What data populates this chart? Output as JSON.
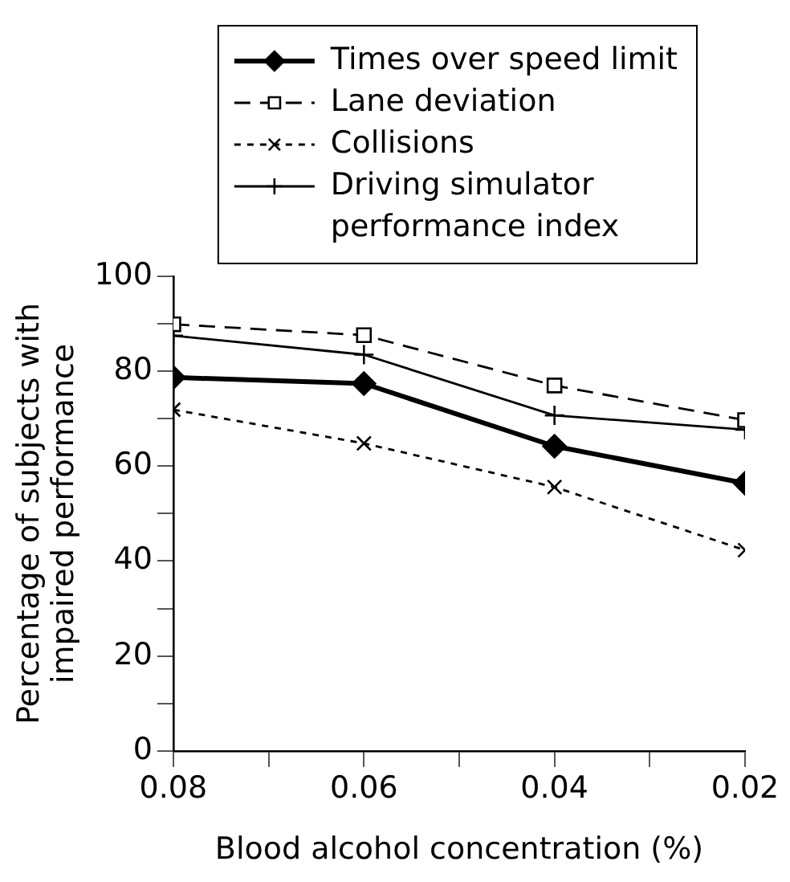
{
  "chart_data": {
    "type": "line",
    "xlabel": "Blood alcohol concentration (%)",
    "ylabel": "Percentage of subjects with impaired performance",
    "x": [
      0.08,
      0.06,
      0.04,
      0.02
    ],
    "xlim": [
      0.08,
      0.02
    ],
    "xticks": [
      0.08,
      {
        "value": 0.07,
        "label": null
      },
      0.06,
      {
        "value": 0.05,
        "label": null
      },
      0.04,
      {
        "value": 0.03,
        "label": null
      },
      0.02
    ],
    "ylim": [
      0,
      100
    ],
    "yticks": [
      0,
      {
        "value": 10,
        "label": null
      },
      20,
      {
        "value": 30,
        "label": null
      },
      40,
      {
        "value": 50,
        "label": null
      },
      60,
      {
        "value": 70,
        "label": null
      },
      80,
      {
        "value": 90,
        "label": null
      },
      100
    ],
    "series": [
      {
        "name": "Times over speed limit",
        "color": "#000000",
        "values": [
          78.7,
          77.4,
          64.2,
          56.4
        ],
        "marker": "diamond",
        "line_style": "solid"
      },
      {
        "name": "Lane deviation",
        "color": "#000000",
        "values": [
          89.9,
          87.6,
          77,
          69.7
        ],
        "marker": "square",
        "line_style": "dashed"
      },
      {
        "name": "Collisions",
        "color": "#000000",
        "values": [
          71.9,
          64.8,
          55.6,
          42.3
        ],
        "marker": "cross",
        "line_style": "dotted"
      },
      {
        "name": "Driving simulator performance index",
        "color": "#000000",
        "values": [
          87.5,
          83.5,
          70.7,
          67.7
        ],
        "marker": "plus",
        "line_style": "solid"
      }
    ],
    "legend": "top right",
    "grid": false
  }
}
